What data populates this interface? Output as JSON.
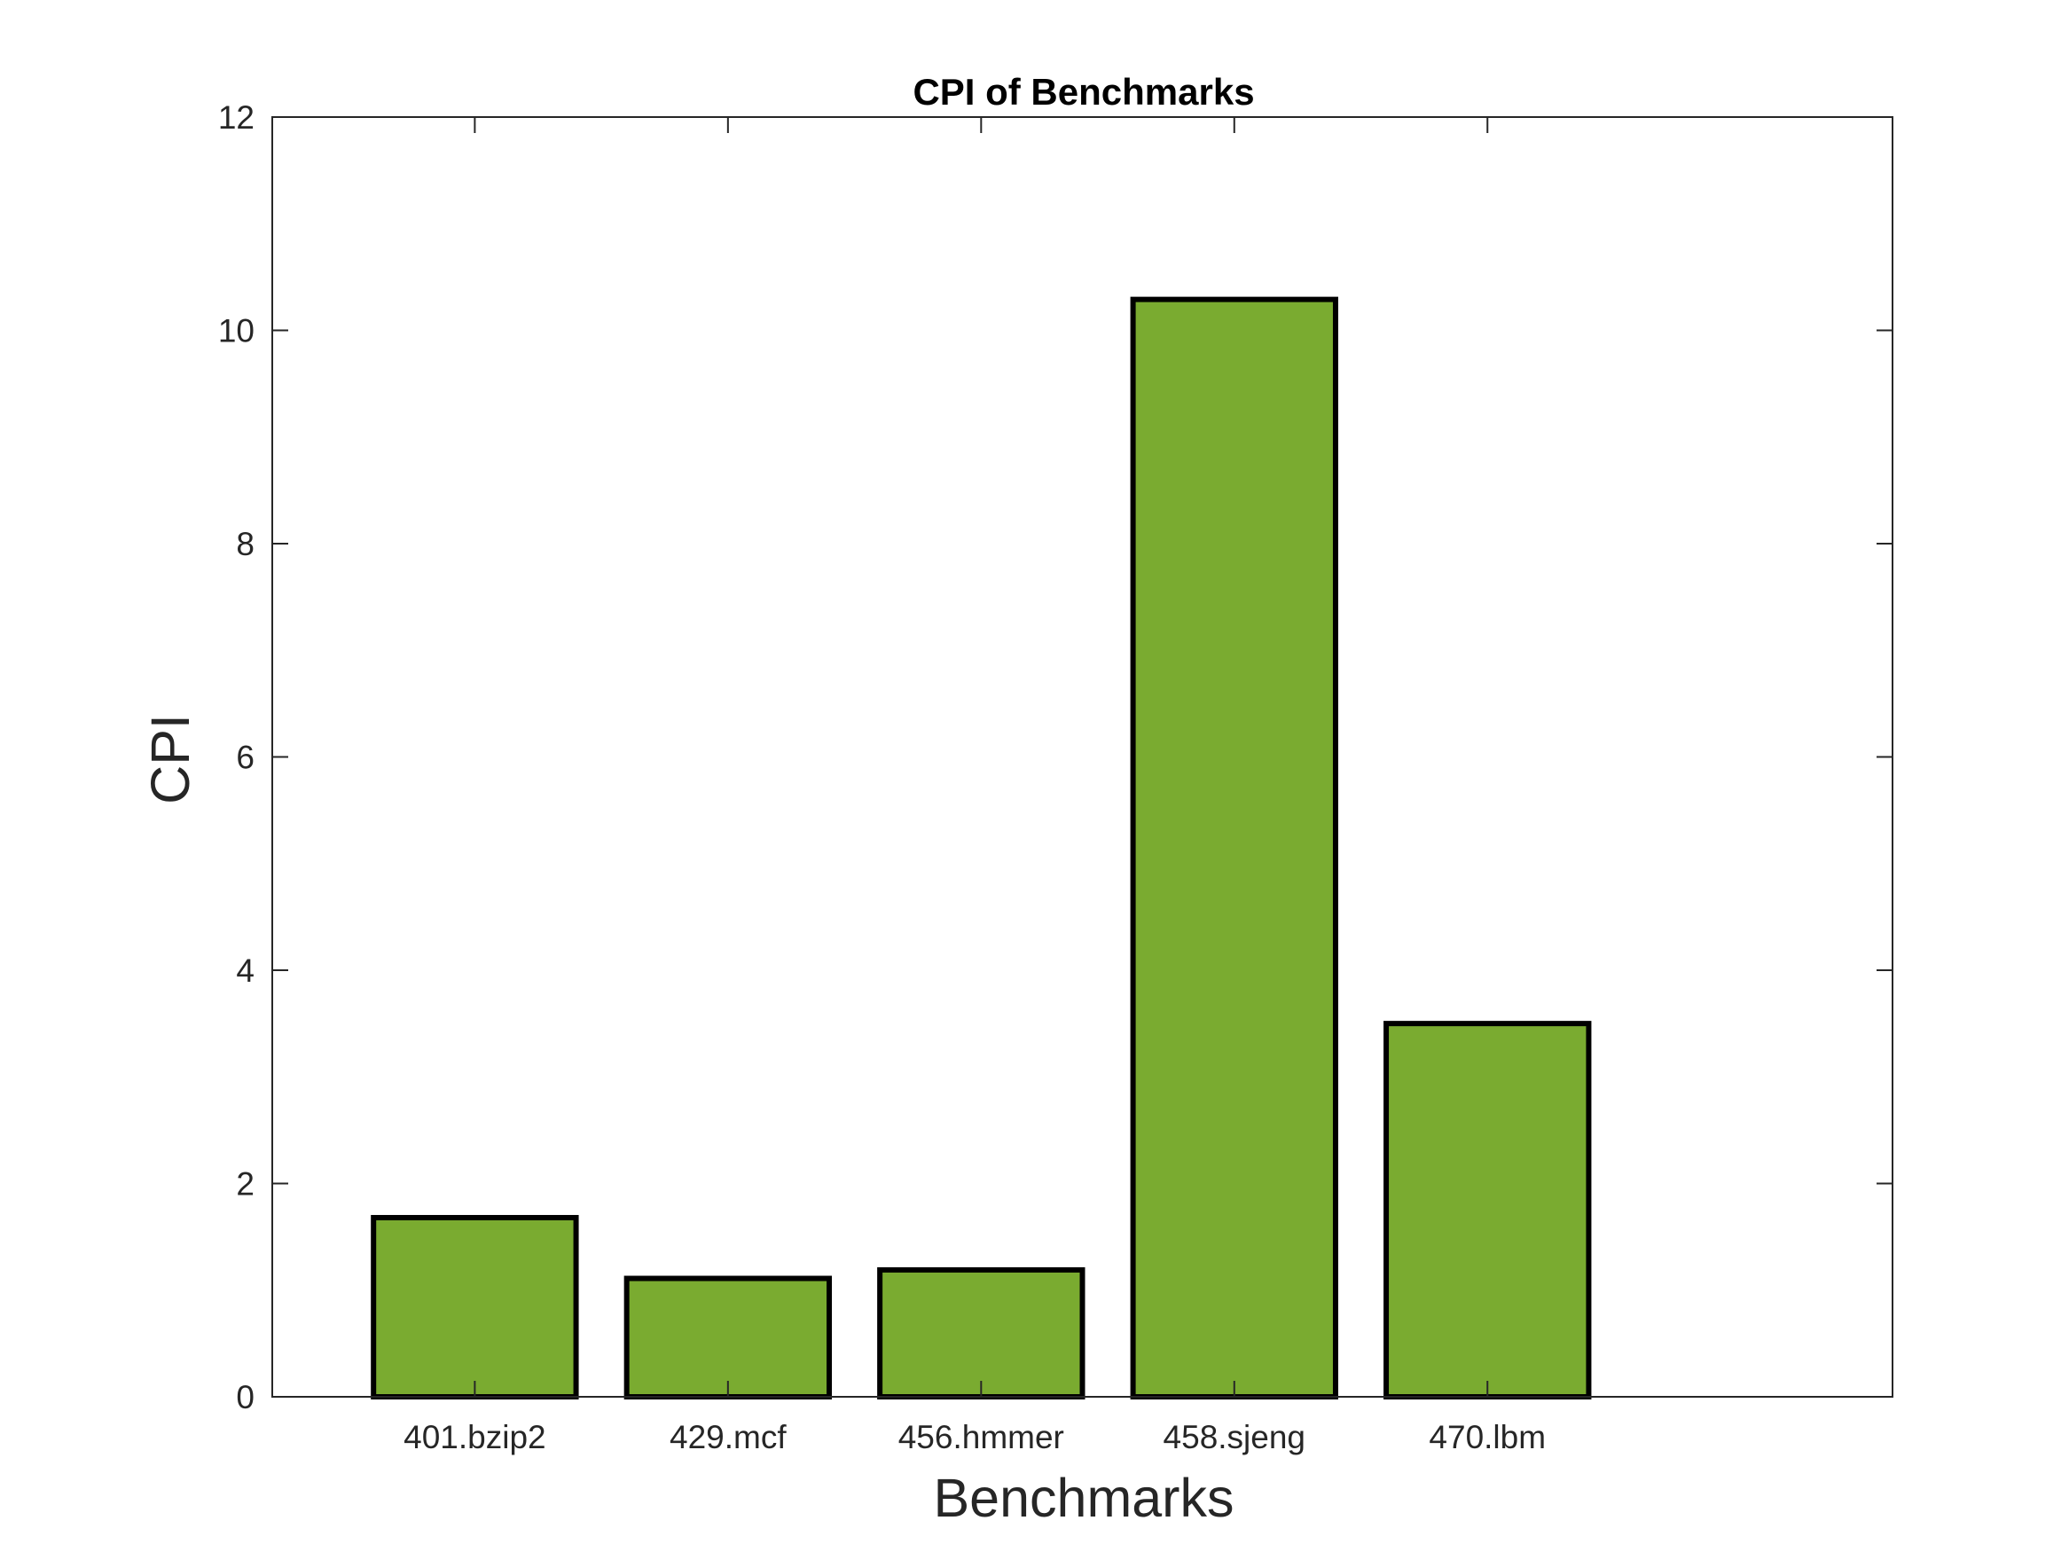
{
  "chart_data": {
    "type": "bar",
    "title": "CPI of Benchmarks",
    "xlabel": "Benchmarks",
    "ylabel": "CPI",
    "categories": [
      "401.bzip2",
      "429.mcf",
      "456.hmmer",
      "458.sjeng",
      "470.lbm"
    ],
    "values": [
      1.68,
      1.11,
      1.19,
      10.29,
      3.5
    ],
    "ylim": [
      0,
      12
    ],
    "yticks": [
      0,
      2,
      4,
      6,
      8,
      10,
      12
    ],
    "xlim": [
      0.2,
      6.6
    ],
    "grid": false,
    "legend": "none",
    "bar_color": "#7aab30",
    "edge_color": "#000000"
  }
}
